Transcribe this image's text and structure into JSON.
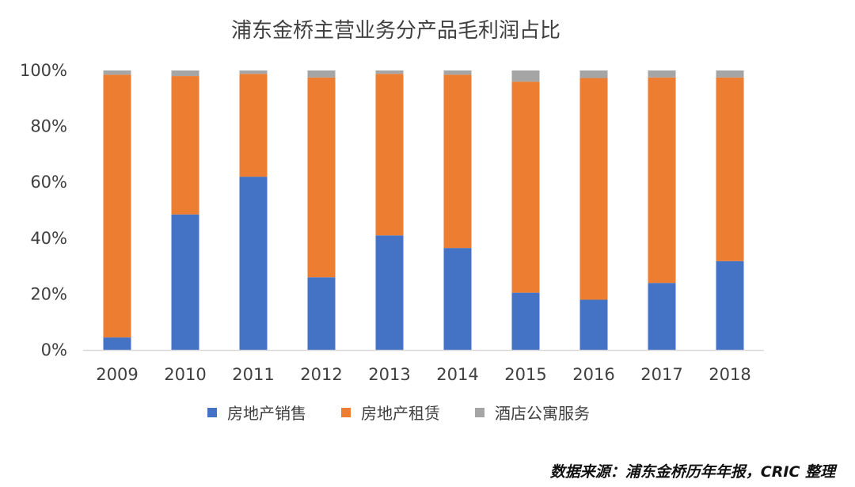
{
  "chart_data": {
    "type": "bar",
    "stacked": true,
    "normalized": true,
    "title": "浦东金桥主营业务分产品毛利润占比",
    "categories": [
      "2009",
      "2010",
      "2011",
      "2012",
      "2013",
      "2014",
      "2015",
      "2016",
      "2017",
      "2018"
    ],
    "series": [
      {
        "name": "房地产销售",
        "color": "#4472C4",
        "values": [
          4.5,
          48.5,
          62.0,
          26.0,
          41.0,
          36.5,
          20.5,
          18.0,
          24.0,
          31.8
        ]
      },
      {
        "name": "房地产租赁",
        "color": "#ED7D31",
        "values": [
          94.0,
          49.5,
          36.8,
          71.5,
          57.8,
          62.0,
          75.5,
          79.3,
          73.5,
          65.7
        ]
      },
      {
        "name": "酒店公寓服务",
        "color": "#A5A5A5",
        "values": [
          1.5,
          2.0,
          1.2,
          2.5,
          1.2,
          1.5,
          4.0,
          2.7,
          2.5,
          2.5
        ]
      }
    ],
    "ylim": [
      0,
      100
    ],
    "yticks": [
      "0%",
      "20%",
      "40%",
      "60%",
      "80%",
      "100%"
    ],
    "xlabel": "",
    "ylabel": "",
    "grid": false,
    "legend_position": "bottom"
  },
  "source": "数据来源：浦东金桥历年年报，CRIC 整理"
}
